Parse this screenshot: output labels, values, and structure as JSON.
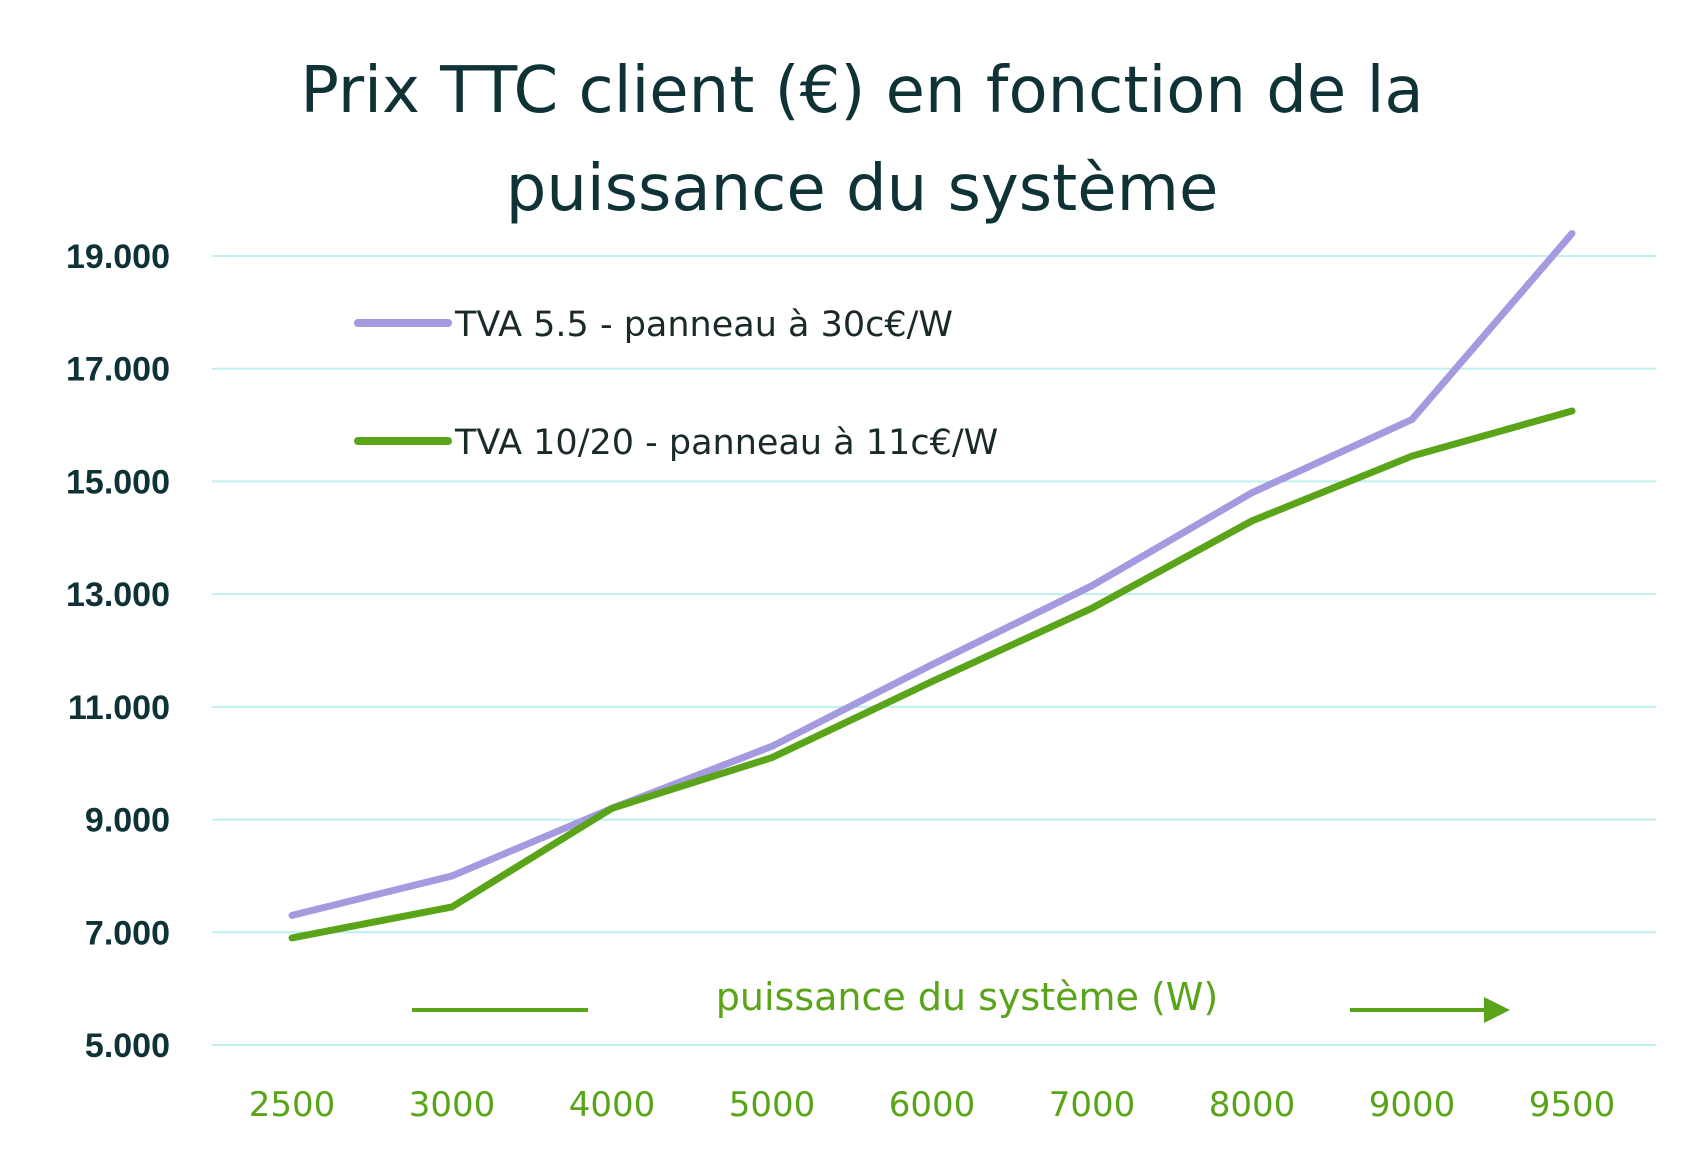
{
  "chart_data": {
    "type": "line",
    "title_lines": [
      "Prix TTC client (€) en fonction de la",
      "puissance du système"
    ],
    "xlabel": "puissance du système (W)",
    "ylabel": "",
    "categories": [
      "2500",
      "3000",
      "4000",
      "5000",
      "6000",
      "7000",
      "8000",
      "9000",
      "9500"
    ],
    "y_ticks": [
      "5.000",
      "7.000",
      "9.000",
      "11.000",
      "13.000",
      "15.000",
      "17.000",
      "19.000"
    ],
    "ylim": [
      5000,
      19000
    ],
    "grid": true,
    "legend_position": "top-left",
    "series": [
      {
        "name": "TVA 5.5 - panneau à 30c€/W",
        "color": "#a39ae0",
        "values": [
          7300,
          8000,
          9200,
          10300,
          11750,
          13150,
          14800,
          16100,
          19400
        ]
      },
      {
        "name": "TVA 10/20 - panneau à 11c€/W",
        "color": "#5aa419",
        "values": [
          6900,
          7450,
          9200,
          10100,
          11450,
          12750,
          14300,
          15450,
          16250
        ]
      }
    ],
    "colors": {
      "grid": "#bdf0ee",
      "title": "#0f3236",
      "y_tick": "#0f3236",
      "x_tick": "#5aa419",
      "xlabel": "#5aa419"
    }
  }
}
